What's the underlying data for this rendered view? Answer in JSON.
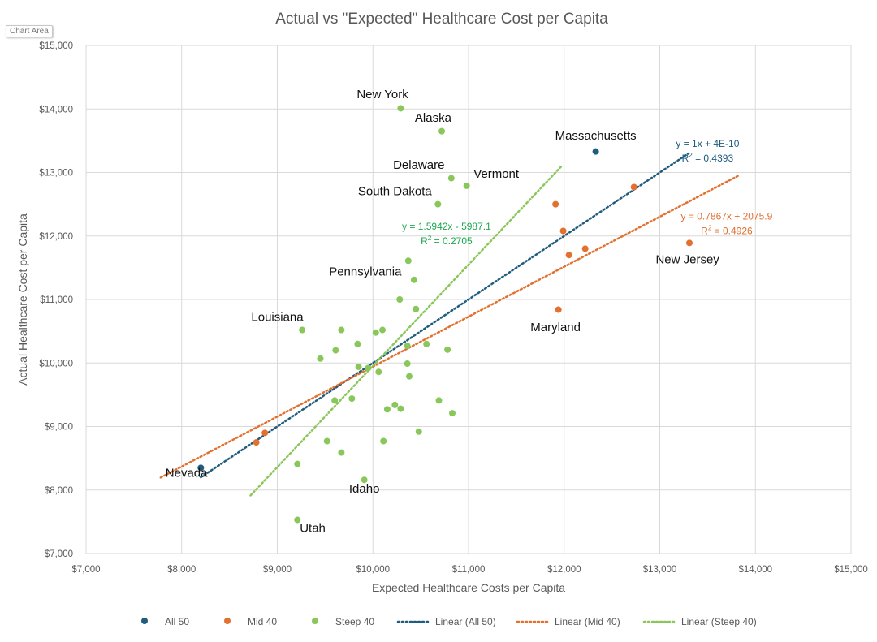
{
  "chart_data": {
    "type": "scatter",
    "title": "Actual vs \"Expected\" Healthcare Cost per Capita",
    "chart_area_label": "Chart Area",
    "xlabel": "Expected Healthcare Costs per Capita",
    "ylabel": "Actual Healthcare Cost per Capita",
    "xlim": [
      7000,
      15000
    ],
    "ylim": [
      7000,
      15000
    ],
    "x_ticks": [
      7000,
      8000,
      9000,
      10000,
      11000,
      12000,
      13000,
      14000,
      15000
    ],
    "y_ticks": [
      7000,
      8000,
      9000,
      10000,
      11000,
      12000,
      13000,
      14000,
      15000
    ],
    "x_tick_labels": [
      "$7,000",
      "$8,000",
      "$9,000",
      "$10,000",
      "$11,000",
      "$12,000",
      "$13,000",
      "$14,000",
      "$15,000"
    ],
    "y_tick_labels": [
      "$7,000",
      "$8,000",
      "$9,000",
      "$10,000",
      "$11,000",
      "$12,000",
      "$13,000",
      "$14,000",
      "$15,000"
    ],
    "grid": true,
    "legend_position": "bottom",
    "series": [
      {
        "name": "All 50",
        "color": "#1f5c7e",
        "points": [
          {
            "x": 8200,
            "y": 8350
          },
          {
            "x": 12330,
            "y": 13330
          }
        ]
      },
      {
        "name": "Mid 40",
        "color": "#e2702f",
        "points": [
          {
            "x": 8780,
            "y": 8750
          },
          {
            "x": 8870,
            "y": 8900
          },
          {
            "x": 11910,
            "y": 12500
          },
          {
            "x": 11990,
            "y": 12080
          },
          {
            "x": 12050,
            "y": 11700
          },
          {
            "x": 12220,
            "y": 11800
          },
          {
            "x": 12730,
            "y": 12770
          },
          {
            "x": 13310,
            "y": 11890
          },
          {
            "x": 11940,
            "y": 10840
          }
        ]
      },
      {
        "name": "Steep 40",
        "color": "#8ac75a",
        "points": [
          {
            "x": 10290,
            "y": 14010
          },
          {
            "x": 10720,
            "y": 13650
          },
          {
            "x": 10820,
            "y": 12910
          },
          {
            "x": 10980,
            "y": 12790
          },
          {
            "x": 10680,
            "y": 12500
          },
          {
            "x": 10370,
            "y": 11610
          },
          {
            "x": 10430,
            "y": 11310
          },
          {
            "x": 10280,
            "y": 11000
          },
          {
            "x": 10450,
            "y": 10850
          },
          {
            "x": 9260,
            "y": 10520
          },
          {
            "x": 9670,
            "y": 10520
          },
          {
            "x": 10030,
            "y": 10480
          },
          {
            "x": 10100,
            "y": 10520
          },
          {
            "x": 9840,
            "y": 10300
          },
          {
            "x": 9610,
            "y": 10200
          },
          {
            "x": 9450,
            "y": 10070
          },
          {
            "x": 10360,
            "y": 10270
          },
          {
            "x": 10560,
            "y": 10300
          },
          {
            "x": 10780,
            "y": 10210
          },
          {
            "x": 10360,
            "y": 9990
          },
          {
            "x": 9850,
            "y": 9940
          },
          {
            "x": 9950,
            "y": 9920
          },
          {
            "x": 10060,
            "y": 9860
          },
          {
            "x": 10380,
            "y": 9790
          },
          {
            "x": 9600,
            "y": 9410
          },
          {
            "x": 9780,
            "y": 9440
          },
          {
            "x": 10690,
            "y": 9410
          },
          {
            "x": 10230,
            "y": 9340
          },
          {
            "x": 10150,
            "y": 9270
          },
          {
            "x": 10290,
            "y": 9280
          },
          {
            "x": 10830,
            "y": 9210
          },
          {
            "x": 10480,
            "y": 8920
          },
          {
            "x": 9520,
            "y": 8770
          },
          {
            "x": 10110,
            "y": 8770
          },
          {
            "x": 9670,
            "y": 8590
          },
          {
            "x": 9210,
            "y": 8410
          },
          {
            "x": 9910,
            "y": 8160
          },
          {
            "x": 9210,
            "y": 7530
          }
        ]
      }
    ],
    "trendlines": [
      {
        "name": "Linear (All 50)",
        "color": "#1f5c7e",
        "slope": 1,
        "intercept": 0,
        "x_range": [
          8200,
          13300
        ],
        "equation": "y = 1x + 4E-10",
        "r2_label": "R",
        "r2_value": " = 0.4393",
        "label_pos_data": {
          "x": 13500,
          "y": 13400
        }
      },
      {
        "name": "Linear (Mid 40)",
        "color": "#e2702f",
        "slope": 0.7867,
        "intercept": 2075.9,
        "x_range": [
          7780,
          13820
        ],
        "equation": "y = 0.7867x + 2075.9",
        "r2_label": "R",
        "r2_value": " = 0.4926",
        "label_pos_data": {
          "x": 13700,
          "y": 12260
        }
      },
      {
        "name": "Linear (Steep 40)",
        "color": "#8ac75a",
        "label_color": "#1aa84e",
        "slope": 1.5942,
        "intercept": -5987.1,
        "x_range": [
          8720,
          11970
        ],
        "equation": "y = 1.5942x - 5987.1",
        "r2_label": "R",
        "r2_value": " = 0.2705",
        "label_pos_data": {
          "x": 10770,
          "y": 12100
        }
      }
    ],
    "annotations": [
      {
        "text": "New York",
        "x": 10100,
        "y": 14170
      },
      {
        "text": "Alaska",
        "x": 10630,
        "y": 13800
      },
      {
        "text": "Massachusetts",
        "x": 12330,
        "y": 13520
      },
      {
        "text": "Delaware",
        "x": 10480,
        "y": 13060
      },
      {
        "text": "Vermont",
        "x": 11290,
        "y": 12920
      },
      {
        "text": "South Dakota",
        "x": 10230,
        "y": 12640
      },
      {
        "text": "Pennsylvania",
        "x": 9920,
        "y": 11380
      },
      {
        "text": "New Jersey",
        "x": 13290,
        "y": 11570
      },
      {
        "text": "Louisiana",
        "x": 9000,
        "y": 10660
      },
      {
        "text": "Maryland",
        "x": 11910,
        "y": 10500
      },
      {
        "text": "Nevada",
        "x": 8050,
        "y": 8210
      },
      {
        "text": "Idaho",
        "x": 9910,
        "y": 7960
      },
      {
        "text": "Utah",
        "x": 9370,
        "y": 7340
      }
    ]
  }
}
